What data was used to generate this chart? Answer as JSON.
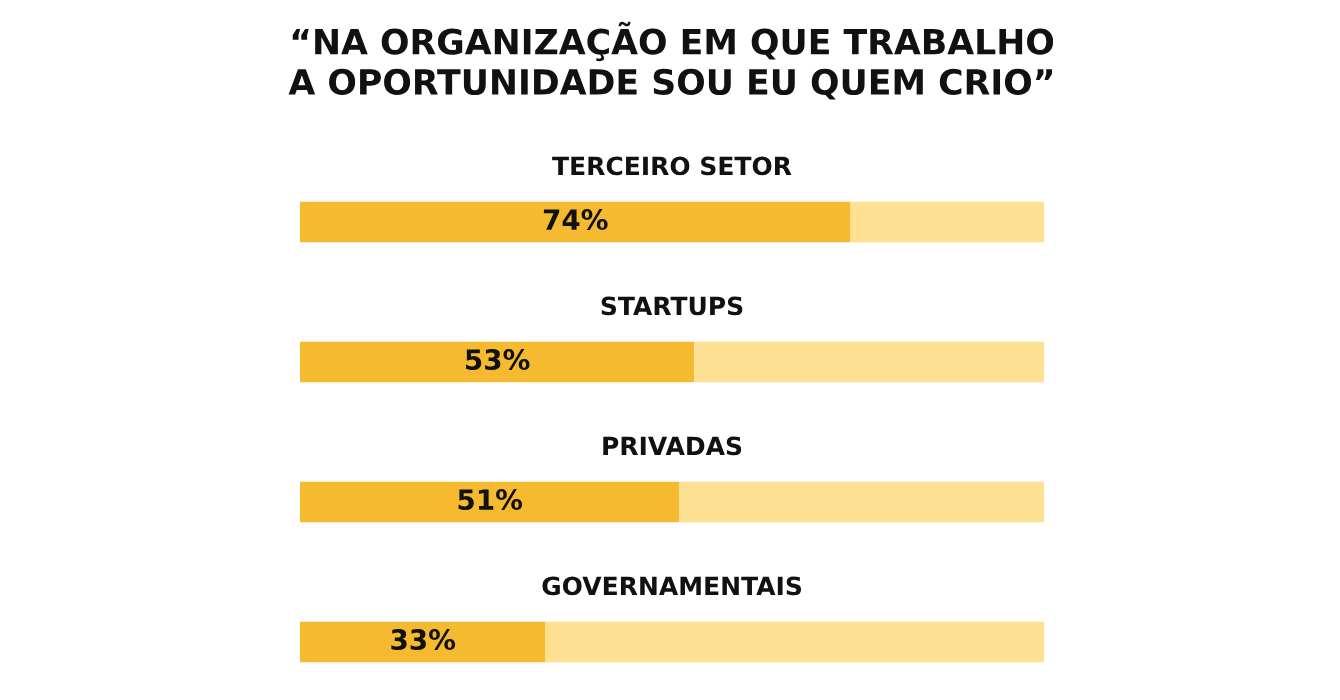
{
  "chart_data": {
    "type": "bar",
    "orientation": "horizontal",
    "stacked": true,
    "title": "“NA ORGANIZAÇÃO EM QUE TRABALHO\nA OPORTUNIDADE SOU EU QUEM CRIO”",
    "categories": [
      "TERCEIRO SETOR",
      "STARTUPS",
      "PRIVADAS",
      "GOVERNAMENTAIS"
    ],
    "series": [
      {
        "color": "#f6ba30",
        "values": [
          74,
          53,
          51,
          33
        ],
        "value_labels": [
          "74%",
          "53%",
          "51%",
          "33%"
        ]
      },
      {
        "color": "#fde092",
        "values": [
          26,
          47,
          49,
          67
        ]
      }
    ],
    "xlim": [
      0,
      100
    ],
    "legend": false
  }
}
